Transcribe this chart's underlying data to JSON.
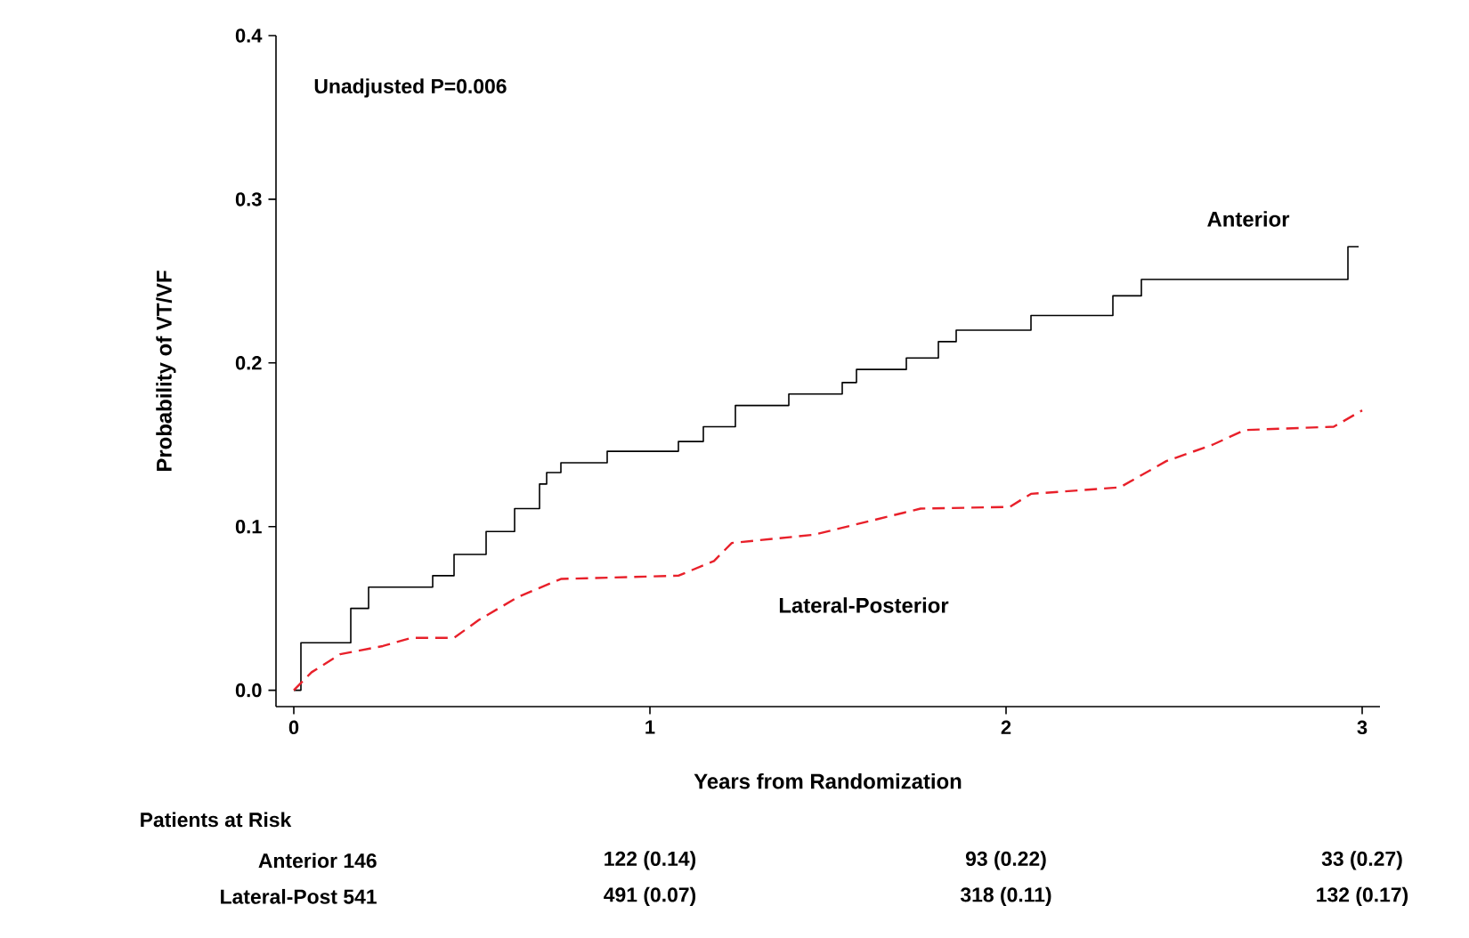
{
  "chart_data": {
    "type": "step",
    "xlabel": "Years from Randomization",
    "ylabel": "Probability of VT/VF",
    "xlim": [
      -0.05,
      3.05
    ],
    "ylim": [
      -0.01,
      0.4
    ],
    "xticks": [
      0,
      1,
      2,
      3
    ],
    "yticks": [
      {
        "value": 0,
        "label": "0.0"
      },
      {
        "value": 0.1,
        "label": "0.1"
      },
      {
        "value": 0.2,
        "label": "0.2"
      },
      {
        "value": 0.3,
        "label": "0.3"
      },
      {
        "value": 0.4,
        "label": "0.4"
      }
    ],
    "grid": false,
    "marker": "none",
    "annotations": [
      "Unadjusted P=0.006",
      "Patients at Risk",
      "Anterior 146",
      "122 (0.14)",
      "93 (0.22)",
      "33 (0.27)",
      "Lateral-Post 541",
      "491 (0.07)",
      "318 (0.11)",
      "132 (0.17)"
    ],
    "series": [
      {
        "name": "Anterior",
        "color": "#000000",
        "line_style": "solid",
        "x": [
          0,
          0.02,
          0.16,
          0.21,
          0.39,
          0.45,
          0.54,
          0.62,
          0.69,
          0.71,
          0.75,
          0.88,
          1.08,
          1.15,
          1.24,
          1.39,
          1.54,
          1.58,
          1.72,
          1.81,
          1.86,
          2.07,
          2.3,
          2.38,
          2.96,
          2.99
        ],
        "values": [
          0,
          0.029,
          0.05,
          0.063,
          0.07,
          0.083,
          0.097,
          0.111,
          0.126,
          0.133,
          0.139,
          0.146,
          0.152,
          0.161,
          0.174,
          0.181,
          0.188,
          0.196,
          0.203,
          0.213,
          0.22,
          0.229,
          0.241,
          0.251,
          0.271,
          0.271
        ]
      },
      {
        "name": "Lateral-Posterior",
        "type": "line",
        "color": "#e8202a",
        "line_style": "dashed",
        "x": [
          0,
          0.05,
          0.13,
          0.25,
          0.33,
          0.45,
          0.52,
          0.63,
          0.75,
          1.08,
          1.18,
          1.23,
          1.46,
          1.61,
          1.76,
          2.01,
          2.07,
          2.32,
          2.45,
          2.58,
          2.67,
          2.92,
          3.0
        ],
        "values": [
          0,
          0.011,
          0.022,
          0.027,
          0.032,
          0.032,
          0.043,
          0.057,
          0.068,
          0.07,
          0.079,
          0.09,
          0.095,
          0.103,
          0.111,
          0.112,
          0.12,
          0.124,
          0.14,
          0.15,
          0.159,
          0.161,
          0.171
        ]
      }
    ]
  }
}
